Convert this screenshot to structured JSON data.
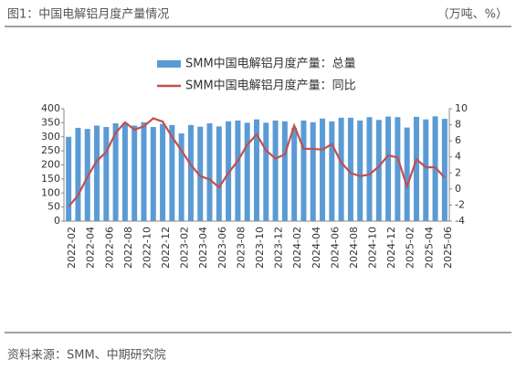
{
  "chart_data": {
    "type": "bar_line",
    "title": "图1：中国电解铝月度产量情况",
    "unit": "（万吨、%）",
    "source": "资料来源：SMM、中期研究院",
    "categories": [
      "2022-02",
      null,
      "2022-04",
      null,
      "2022-06",
      null,
      "2022-08",
      null,
      "2022-10",
      null,
      "2022-12",
      null,
      "2023-02",
      null,
      "2023-04",
      null,
      "2023-06",
      null,
      "2023-08",
      null,
      "2023-10",
      null,
      "2023-12",
      null,
      "2024-02",
      null,
      "2024-04",
      null,
      "2024-06",
      null,
      "2024-08",
      null,
      "2024-10",
      null,
      "2024-12",
      null,
      "2025-02",
      null,
      "2025-04",
      null,
      "2025-06"
    ],
    "series": [
      {
        "name": "SMM中国电解铝月度产量：总量",
        "color": "#5b9bd5",
        "type": "bar",
        "values": [
          300,
          332,
          328,
          340,
          335,
          348,
          350,
          340,
          352,
          335,
          346,
          342,
          312,
          342,
          336,
          348,
          337,
          355,
          358,
          350,
          362,
          350,
          358,
          355,
          332,
          358,
          352,
          365,
          355,
          368,
          368,
          358,
          370,
          360,
          372,
          370,
          333,
          371,
          362,
          373,
          364
        ]
      },
      {
        "name": "SMM中国电解铝月度产量：同比",
        "color": "#c0504d",
        "type": "line",
        "axis": "y2",
        "values": [
          -2.2,
          -0.8,
          1.5,
          3.5,
          4.6,
          7,
          8.3,
          7.4,
          7.8,
          8.8,
          8.4,
          6.5,
          4.8,
          3,
          1.6,
          1.2,
          0.2,
          2,
          3.5,
          5.5,
          6.8,
          4.8,
          3.8,
          4.3,
          7.9,
          5,
          5,
          4.9,
          5.6,
          3.3,
          2,
          1.6,
          1.8,
          2.8,
          4.2,
          3.9,
          0.3,
          3.7,
          2.7,
          2.7,
          1.4
        ]
      }
    ],
    "ylim": [
      0,
      400
    ],
    "yticks": [
      0,
      50,
      100,
      150,
      200,
      250,
      300,
      350,
      400
    ],
    "y2lim": [
      -4,
      10
    ],
    "y2ticks": [
      -4,
      -2,
      0,
      2,
      4,
      6,
      8,
      10
    ]
  }
}
